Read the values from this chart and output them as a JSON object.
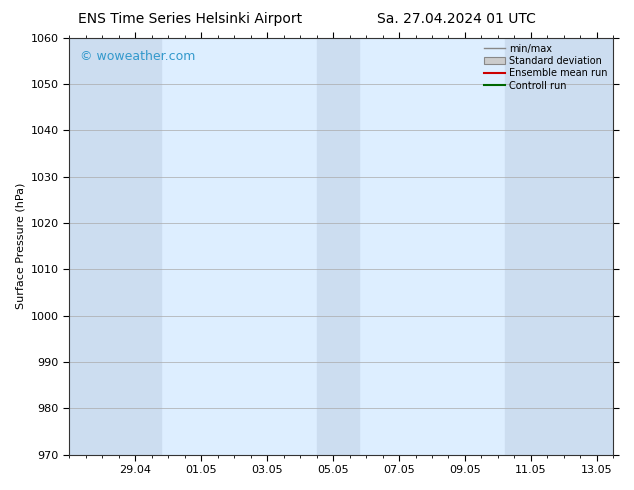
{
  "title_left": "ENS Time Series Helsinki Airport",
  "title_right": "Sa. 27.04.2024 01 UTC",
  "ylabel": "Surface Pressure (hPa)",
  "ylim": [
    970,
    1060
  ],
  "yticks": [
    970,
    980,
    990,
    1000,
    1010,
    1020,
    1030,
    1040,
    1050,
    1060
  ],
  "xlim_start": 0.0,
  "xlim_end": 16.5,
  "xtick_labels": [
    "29.04",
    "01.05",
    "03.05",
    "05.05",
    "07.05",
    "09.05",
    "11.05",
    "13.05"
  ],
  "xtick_positions": [
    2.0,
    4.0,
    6.0,
    8.0,
    10.0,
    12.0,
    14.0,
    16.0
  ],
  "background_color": "#ffffff",
  "plot_bg_color": "#ddeeff",
  "shaded_bands": [
    {
      "xmin": 0.0,
      "xmax": 1.2,
      "color": "#ccddf0"
    },
    {
      "xmin": 1.2,
      "xmax": 2.8,
      "color": "#ccddf0"
    },
    {
      "xmin": 7.5,
      "xmax": 8.8,
      "color": "#ccddf0"
    },
    {
      "xmin": 13.2,
      "xmax": 15.0,
      "color": "#ccddf0"
    },
    {
      "xmin": 15.0,
      "xmax": 16.5,
      "color": "#ccddf0"
    }
  ],
  "watermark_text": "© woweather.com",
  "watermark_color": "#3399cc",
  "legend_labels": [
    "min/max",
    "Standard deviation",
    "Ensemble mean run",
    "Controll run"
  ],
  "title_fontsize": 10,
  "axis_label_fontsize": 8,
  "tick_fontsize": 8,
  "watermark_fontsize": 9
}
